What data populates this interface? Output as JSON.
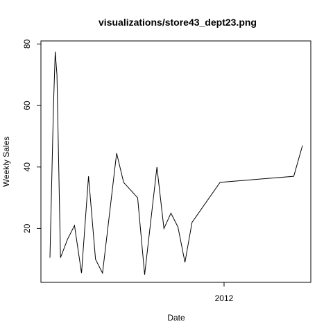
{
  "chart_data": {
    "type": "line",
    "title": "visualizations/store43_dept23.png",
    "xlabel": "Date",
    "ylabel": "Weekly Sales",
    "x_ticks": [
      {
        "label": "2012",
        "value": "2012-01-01"
      }
    ],
    "y_ticks": [
      20,
      40,
      60,
      80
    ],
    "ylim": [
      2.5,
      81
    ],
    "xlim": [
      "2010-02-05",
      "2012-11-09"
    ],
    "grid": false,
    "legend": "none",
    "series": [
      {
        "color": "#000000",
        "points": [
          {
            "x": "2010-02-05",
            "y": 10.5
          },
          {
            "x": "2010-02-19",
            "y": 60
          },
          {
            "x": "2010-02-26",
            "y": 77.5
          },
          {
            "x": "2010-03-05",
            "y": 70
          },
          {
            "x": "2010-03-19",
            "y": 10.5
          },
          {
            "x": "2010-04-16",
            "y": 16.5
          },
          {
            "x": "2010-05-14",
            "y": 21
          },
          {
            "x": "2010-06-11",
            "y": 5.5
          },
          {
            "x": "2010-07-09",
            "y": 37
          },
          {
            "x": "2010-08-06",
            "y": 10
          },
          {
            "x": "2010-09-03",
            "y": 5.5
          },
          {
            "x": "2010-10-29",
            "y": 44.5
          },
          {
            "x": "2010-11-26",
            "y": 35
          },
          {
            "x": "2011-01-21",
            "y": 30
          },
          {
            "x": "2011-02-18",
            "y": 5
          },
          {
            "x": "2011-04-08",
            "y": 40
          },
          {
            "x": "2011-05-06",
            "y": 20
          },
          {
            "x": "2011-06-03",
            "y": 25
          },
          {
            "x": "2011-07-01",
            "y": 20.5
          },
          {
            "x": "2011-07-29",
            "y": 9
          },
          {
            "x": "2011-08-26",
            "y": 22
          },
          {
            "x": "2011-12-16",
            "y": 35
          },
          {
            "x": "2012-10-05",
            "y": 37
          },
          {
            "x": "2012-11-09",
            "y": 47
          }
        ]
      }
    ]
  }
}
